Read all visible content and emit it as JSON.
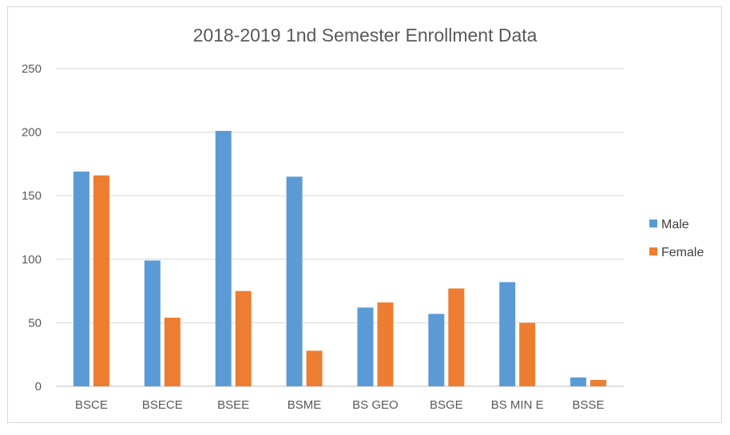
{
  "chart_data": {
    "type": "bar",
    "title": "2018-2019 1nd Semester Enrollment Data",
    "xlabel": "",
    "ylabel": "",
    "categories": [
      "BSCE",
      "BSECE",
      "BSEE",
      "BSME",
      "BS GEO",
      "BSGE",
      "BS MIN E",
      "BSSE"
    ],
    "series": [
      {
        "name": "Male",
        "color": "#5b9bd5",
        "values": [
          169,
          99,
          201,
          165,
          62,
          57,
          82,
          7
        ]
      },
      {
        "name": "Female",
        "color": "#ed7d31",
        "values": [
          166,
          54,
          75,
          28,
          66,
          77,
          50,
          5
        ]
      }
    ],
    "ylim": [
      0,
      250
    ],
    "yticks": [
      0,
      50,
      100,
      150,
      200,
      250
    ],
    "grid": true,
    "legend_position": "right"
  }
}
